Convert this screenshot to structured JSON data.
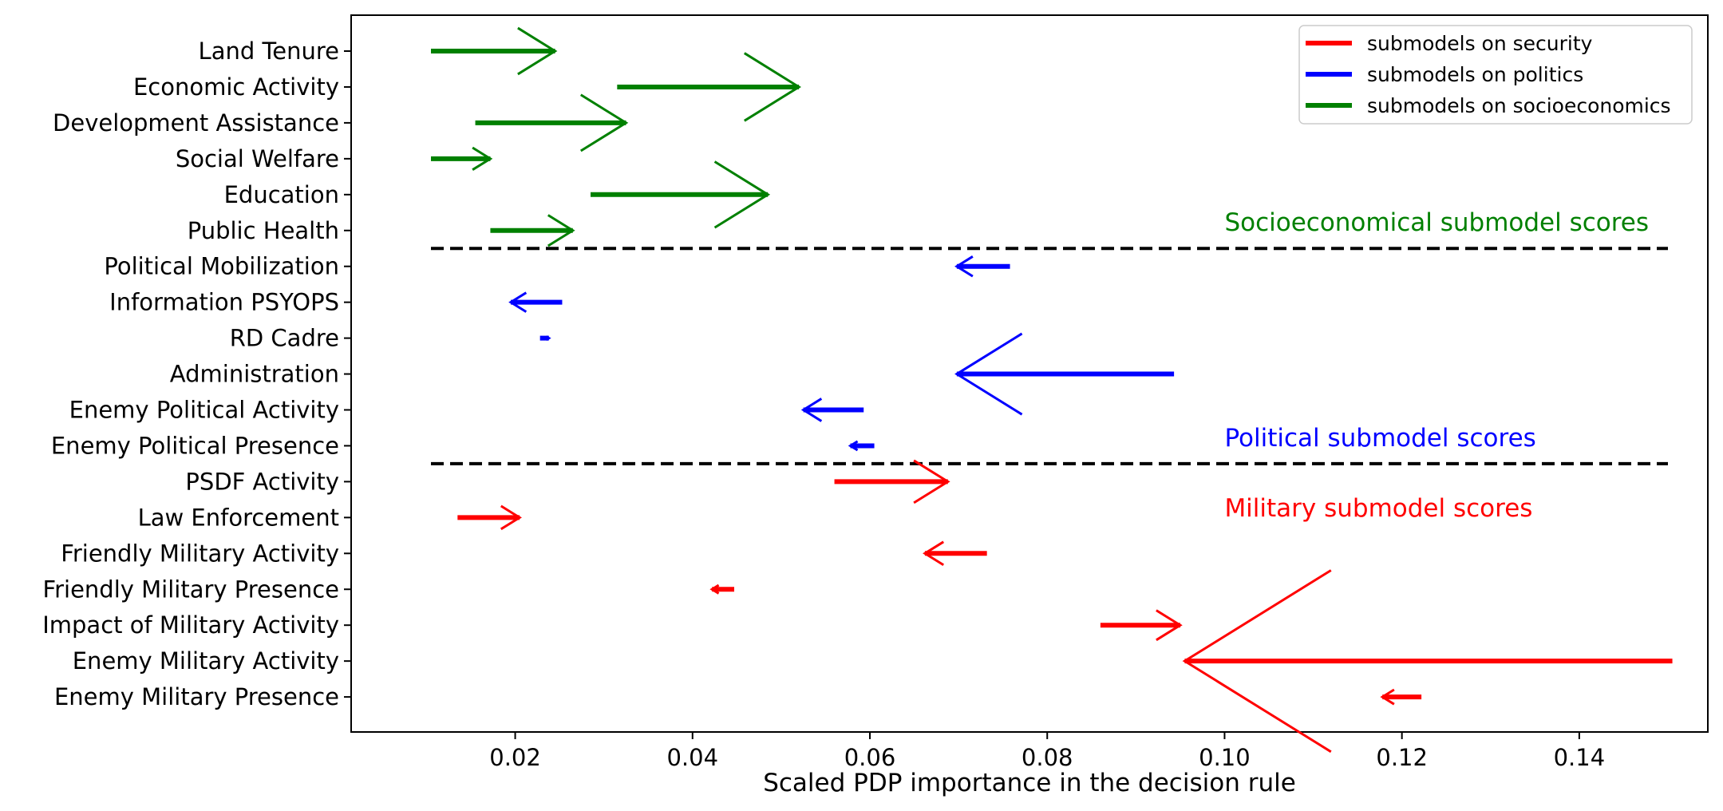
{
  "chart_data": {
    "type": "arrow",
    "xlabel": "Scaled PDP importance in the decision rule",
    "ylabel": "",
    "xlim": [
      0.0015,
      0.1545
    ],
    "xticks": [
      0.02,
      0.04,
      0.06,
      0.08,
      0.1,
      0.12,
      0.14
    ],
    "xtick_labels": [
      "0.02",
      "0.04",
      "0.06",
      "0.08",
      "0.10",
      "0.12",
      "0.14"
    ],
    "legend_position": "top-right",
    "series": [
      {
        "name": "submodels on security",
        "color": "#ff0000"
      },
      {
        "name": "submodels on politics",
        "color": "#0000ff"
      },
      {
        "name": "submodels on socioeconomics",
        "color": "#008000"
      }
    ],
    "items": [
      {
        "label": "Land Tenure",
        "group": "socioeconomics",
        "from": 0.0105,
        "to": 0.0245
      },
      {
        "label": "Economic Activity",
        "group": "socioeconomics",
        "from": 0.0315,
        "to": 0.052
      },
      {
        "label": "Development Assistance",
        "group": "socioeconomics",
        "from": 0.0155,
        "to": 0.0325
      },
      {
        "label": "Social Welfare",
        "group": "socioeconomics",
        "from": 0.0105,
        "to": 0.0172
      },
      {
        "label": "Education",
        "group": "socioeconomics",
        "from": 0.0285,
        "to": 0.0485
      },
      {
        "label": "Public Health",
        "group": "socioeconomics",
        "from": 0.0172,
        "to": 0.0265
      },
      {
        "label": "Political Mobilization",
        "group": "politics",
        "from": 0.0758,
        "to": 0.0698
      },
      {
        "label": "Information PSYOPS",
        "group": "politics",
        "from": 0.0253,
        "to": 0.0195
      },
      {
        "label": "RD Cadre",
        "group": "politics",
        "from": 0.0228,
        "to": 0.0238
      },
      {
        "label": "Administration",
        "group": "politics",
        "from": 0.0943,
        "to": 0.0698
      },
      {
        "label": "Enemy Political Activity",
        "group": "politics",
        "from": 0.0593,
        "to": 0.0525
      },
      {
        "label": "Enemy Political Presence",
        "group": "politics",
        "from": 0.0605,
        "to": 0.0578
      },
      {
        "label": "PSDF Activity",
        "group": "security",
        "from": 0.056,
        "to": 0.0688
      },
      {
        "label": "Law Enforcement",
        "group": "security",
        "from": 0.0135,
        "to": 0.0205
      },
      {
        "label": "Friendly Military Activity",
        "group": "security",
        "from": 0.0732,
        "to": 0.0662
      },
      {
        "label": "Friendly Military Presence",
        "group": "security",
        "from": 0.0447,
        "to": 0.0422
      },
      {
        "label": "Impact of Military Activity",
        "group": "security",
        "from": 0.086,
        "to": 0.095
      },
      {
        "label": "Enemy Military Activity",
        "group": "security",
        "from": 0.1505,
        "to": 0.0955
      },
      {
        "label": "Enemy Military Presence",
        "group": "security",
        "from": 0.1222,
        "to": 0.1178
      }
    ],
    "separators": [
      {
        "between": [
          "Public Health",
          "Political Mobilization"
        ],
        "from": 0.0105,
        "to": 0.15,
        "style": "dashed"
      },
      {
        "between": [
          "Enemy Political Presence",
          "PSDF Activity"
        ],
        "from": 0.0105,
        "to": 0.15,
        "style": "dashed"
      }
    ],
    "annotations": [
      {
        "text": "Socioeconomical submodel scores",
        "color": "#008000",
        "x": 0.1
      },
      {
        "text": "Political submodel scores",
        "color": "#0000ff",
        "x": 0.1
      },
      {
        "text": "Military submodel scores",
        "color": "#ff0000",
        "x": 0.1
      }
    ]
  }
}
